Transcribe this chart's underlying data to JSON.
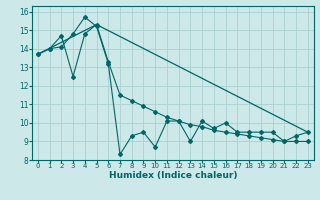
{
  "xlabel": "Humidex (Indice chaleur)",
  "bg_color": "#cce8e8",
  "grid_color": "#aad0d0",
  "line_color": "#006666",
  "xlim": [
    -0.5,
    23.5
  ],
  "ylim": [
    8,
    16.3
  ],
  "yticks": [
    8,
    9,
    10,
    11,
    12,
    13,
    14,
    15,
    16
  ],
  "xticks": [
    0,
    1,
    2,
    3,
    4,
    5,
    6,
    7,
    8,
    9,
    10,
    11,
    12,
    13,
    14,
    15,
    16,
    17,
    18,
    19,
    20,
    21,
    22,
    23
  ],
  "series1_x": [
    0,
    1,
    2,
    3,
    4,
    5,
    6,
    7,
    8,
    9,
    10,
    11,
    12,
    13,
    14,
    15,
    16,
    17,
    18,
    19,
    20,
    21,
    22,
    23
  ],
  "series1_y": [
    13.7,
    14.0,
    14.1,
    14.8,
    15.7,
    15.2,
    13.2,
    8.3,
    9.3,
    9.5,
    8.7,
    10.1,
    10.1,
    9.0,
    10.1,
    9.7,
    10.0,
    9.5,
    9.5,
    9.5,
    9.5,
    9.0,
    9.3,
    9.5
  ],
  "series2_x": [
    0,
    1,
    2,
    3,
    4,
    5,
    6,
    7,
    8,
    9,
    10,
    11,
    12,
    13,
    14,
    15,
    16,
    17,
    18,
    19,
    20,
    21,
    22,
    23
  ],
  "series2_y": [
    13.7,
    14.0,
    14.7,
    12.5,
    14.8,
    15.3,
    13.3,
    11.5,
    11.2,
    10.9,
    10.6,
    10.3,
    10.1,
    9.9,
    9.8,
    9.6,
    9.5,
    9.4,
    9.3,
    9.2,
    9.1,
    9.0,
    9.0,
    9.0
  ],
  "series3_x": [
    0,
    5,
    23
  ],
  "series3_y": [
    13.7,
    15.3,
    9.5
  ]
}
